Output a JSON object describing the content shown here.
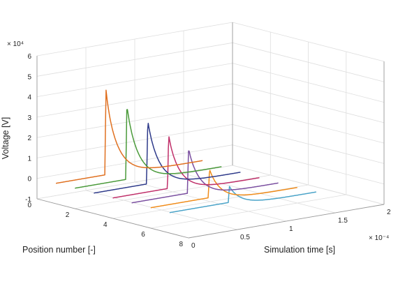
{
  "chart_data": {
    "type": "line",
    "projection": "3d",
    "title": "",
    "xlabel": "Position number [-]",
    "ylabel": "Simulation time [s]",
    "zlabel": "Voltage [V]",
    "x_ticks": [
      "0",
      "2",
      "4",
      "6",
      "8"
    ],
    "y_ticks": [
      "0",
      "0.5",
      "1",
      "1.5",
      "2"
    ],
    "z_ticks": [
      "-1",
      "0",
      "1",
      "2",
      "3",
      "4",
      "5",
      "6"
    ],
    "y_multiplier": "× 10⁻⁴",
    "z_multiplier": "× 10⁴",
    "xlim": [
      0,
      8
    ],
    "ylim": [
      0,
      0.0002
    ],
    "zlim": [
      -10000,
      60000
    ],
    "grid": true,
    "series": [
      {
        "position": 1,
        "color": "#e07020",
        "onset": 5e-05,
        "peak": 48000,
        "settle": 42000,
        "tail": -1200
      },
      {
        "position": 2,
        "color": "#4a9a3a",
        "onset": 5.2e-05,
        "peak": 41000,
        "settle": 38000,
        "tail": -1800
      },
      {
        "position": 3,
        "color": "#2e3a8a",
        "onset": 5.4e-05,
        "peak": 35000,
        "settle": 33000,
        "tail": -2100
      },
      {
        "position": 4,
        "color": "#c0306a",
        "onset": 5.6e-05,
        "peak": 30000,
        "settle": 27000,
        "tail": -2400
      },
      {
        "position": 5,
        "color": "#7a4fa0",
        "onset": 5.7e-05,
        "peak": 25000,
        "settle": 23000,
        "tail": -2600
      },
      {
        "position": 6,
        "color": "#f08c1a",
        "onset": 5.9e-05,
        "peak": 16000,
        "settle": 15000,
        "tail": -2400
      },
      {
        "position": 7,
        "color": "#4aa3c8",
        "onset": 6e-05,
        "peak": 9000,
        "settle": 8500,
        "tail": -2200
      }
    ]
  }
}
